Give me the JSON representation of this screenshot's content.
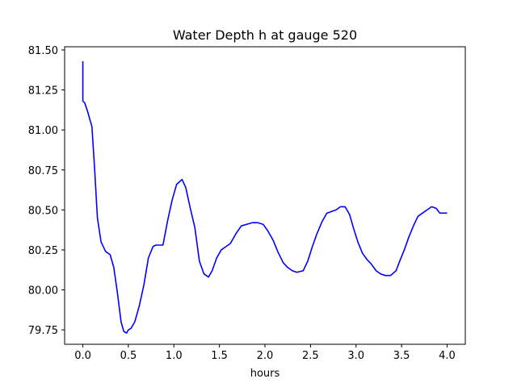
{
  "chart_data": {
    "type": "line",
    "title": "Water Depth h at gauge 520",
    "xlabel": "hours",
    "ylabel": "",
    "xlim": [
      -0.2,
      4.2
    ],
    "ylim": [
      79.66,
      81.52
    ],
    "xticks": [
      0.0,
      0.5,
      1.0,
      1.5,
      2.0,
      2.5,
      3.0,
      3.5,
      4.0
    ],
    "xtick_labels": [
      "0.0",
      "0.5",
      "1.0",
      "1.5",
      "2.0",
      "2.5",
      "3.0",
      "3.5",
      "4.0"
    ],
    "yticks": [
      79.75,
      80.0,
      80.25,
      80.5,
      80.75,
      81.0,
      81.25,
      81.5
    ],
    "ytick_labels": [
      "79.75",
      "80.00",
      "80.25",
      "80.50",
      "80.75",
      "81.00",
      "81.25",
      "81.50"
    ],
    "grid": false,
    "series": [
      {
        "color": "#0000ff",
        "x": [
          0.0,
          0.0,
          0.02,
          0.05,
          0.1,
          0.13,
          0.16,
          0.2,
          0.25,
          0.3,
          0.34,
          0.38,
          0.42,
          0.45,
          0.48,
          0.5,
          0.53,
          0.57,
          0.62,
          0.67,
          0.72,
          0.77,
          0.8,
          0.83,
          0.88,
          0.93,
          0.98,
          1.03,
          1.09,
          1.13,
          1.18,
          1.23,
          1.28,
          1.33,
          1.38,
          1.42,
          1.47,
          1.52,
          1.57,
          1.62,
          1.68,
          1.74,
          1.8,
          1.86,
          1.92,
          1.98,
          2.03,
          2.09,
          2.14,
          2.2,
          2.25,
          2.3,
          2.35,
          2.42,
          2.47,
          2.52,
          2.57,
          2.63,
          2.68,
          2.73,
          2.78,
          2.83,
          2.88,
          2.93,
          2.97,
          3.02,
          3.07,
          3.12,
          3.17,
          3.22,
          3.27,
          3.32,
          3.38,
          3.44,
          3.48,
          3.53,
          3.58,
          3.63,
          3.68,
          3.73,
          3.78,
          3.83,
          3.88,
          3.92,
          3.96,
          4.0
        ],
        "y": [
          81.43,
          81.18,
          81.17,
          81.12,
          81.02,
          80.75,
          80.45,
          80.3,
          80.24,
          80.22,
          80.14,
          79.98,
          79.8,
          79.74,
          79.73,
          79.75,
          79.76,
          79.8,
          79.9,
          80.03,
          80.2,
          80.27,
          80.28,
          80.28,
          80.28,
          80.43,
          80.56,
          80.66,
          80.69,
          80.64,
          80.51,
          80.39,
          80.18,
          80.1,
          80.08,
          80.12,
          80.2,
          80.25,
          80.27,
          80.29,
          80.35,
          80.4,
          80.41,
          80.42,
          80.42,
          80.41,
          80.37,
          80.31,
          80.24,
          80.17,
          80.14,
          80.12,
          80.11,
          80.12,
          80.18,
          80.27,
          80.35,
          80.43,
          80.48,
          80.49,
          80.5,
          80.52,
          80.52,
          80.47,
          80.39,
          80.3,
          80.23,
          80.19,
          80.16,
          80.12,
          80.1,
          80.09,
          80.09,
          80.12,
          80.18,
          80.25,
          80.33,
          80.4,
          80.46,
          80.48,
          80.5,
          80.52,
          80.51,
          80.48,
          80.48,
          80.48
        ]
      }
    ]
  }
}
